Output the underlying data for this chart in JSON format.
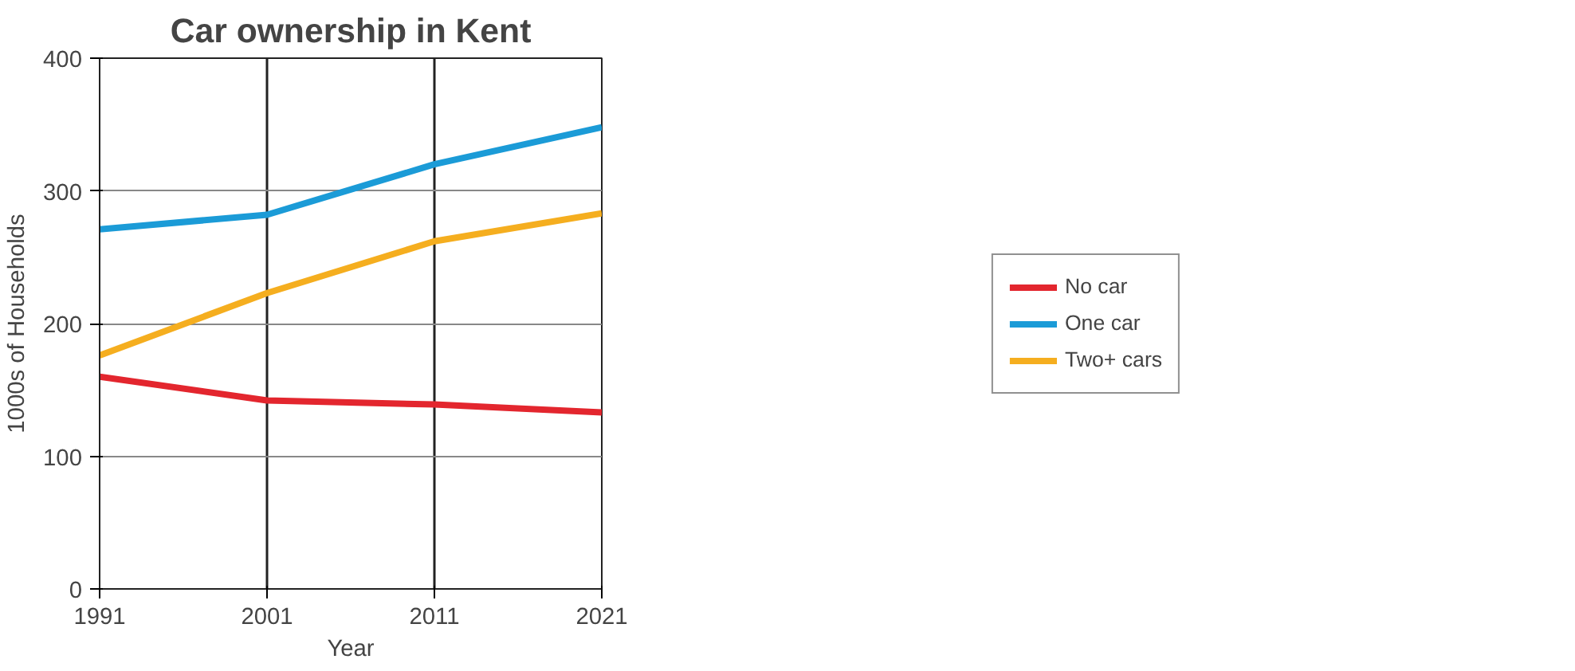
{
  "chart_data": {
    "type": "line",
    "title": "Car ownership in Kent",
    "xlabel": "Year",
    "ylabel": "1000s of Households",
    "x": [
      1991,
      2001,
      2011,
      2021
    ],
    "series": [
      {
        "name": "No car",
        "color": "#e3262e",
        "values": [
          160,
          142,
          139,
          133
        ]
      },
      {
        "name": "One car",
        "color": "#1b9bd7",
        "values": [
          271,
          282,
          320,
          348
        ]
      },
      {
        "name": "Two+ cars",
        "color": "#f5ae1f",
        "values": [
          176,
          223,
          262,
          283
        ]
      }
    ],
    "xlim": [
      1991,
      2021
    ],
    "xticks": [
      1991,
      2001,
      2011,
      2021
    ],
    "ylim": [
      0,
      400
    ],
    "yticks": [
      0,
      100,
      200,
      300,
      400
    ],
    "grid": true,
    "legend": "right",
    "marker": "none",
    "line_style": "solid"
  }
}
